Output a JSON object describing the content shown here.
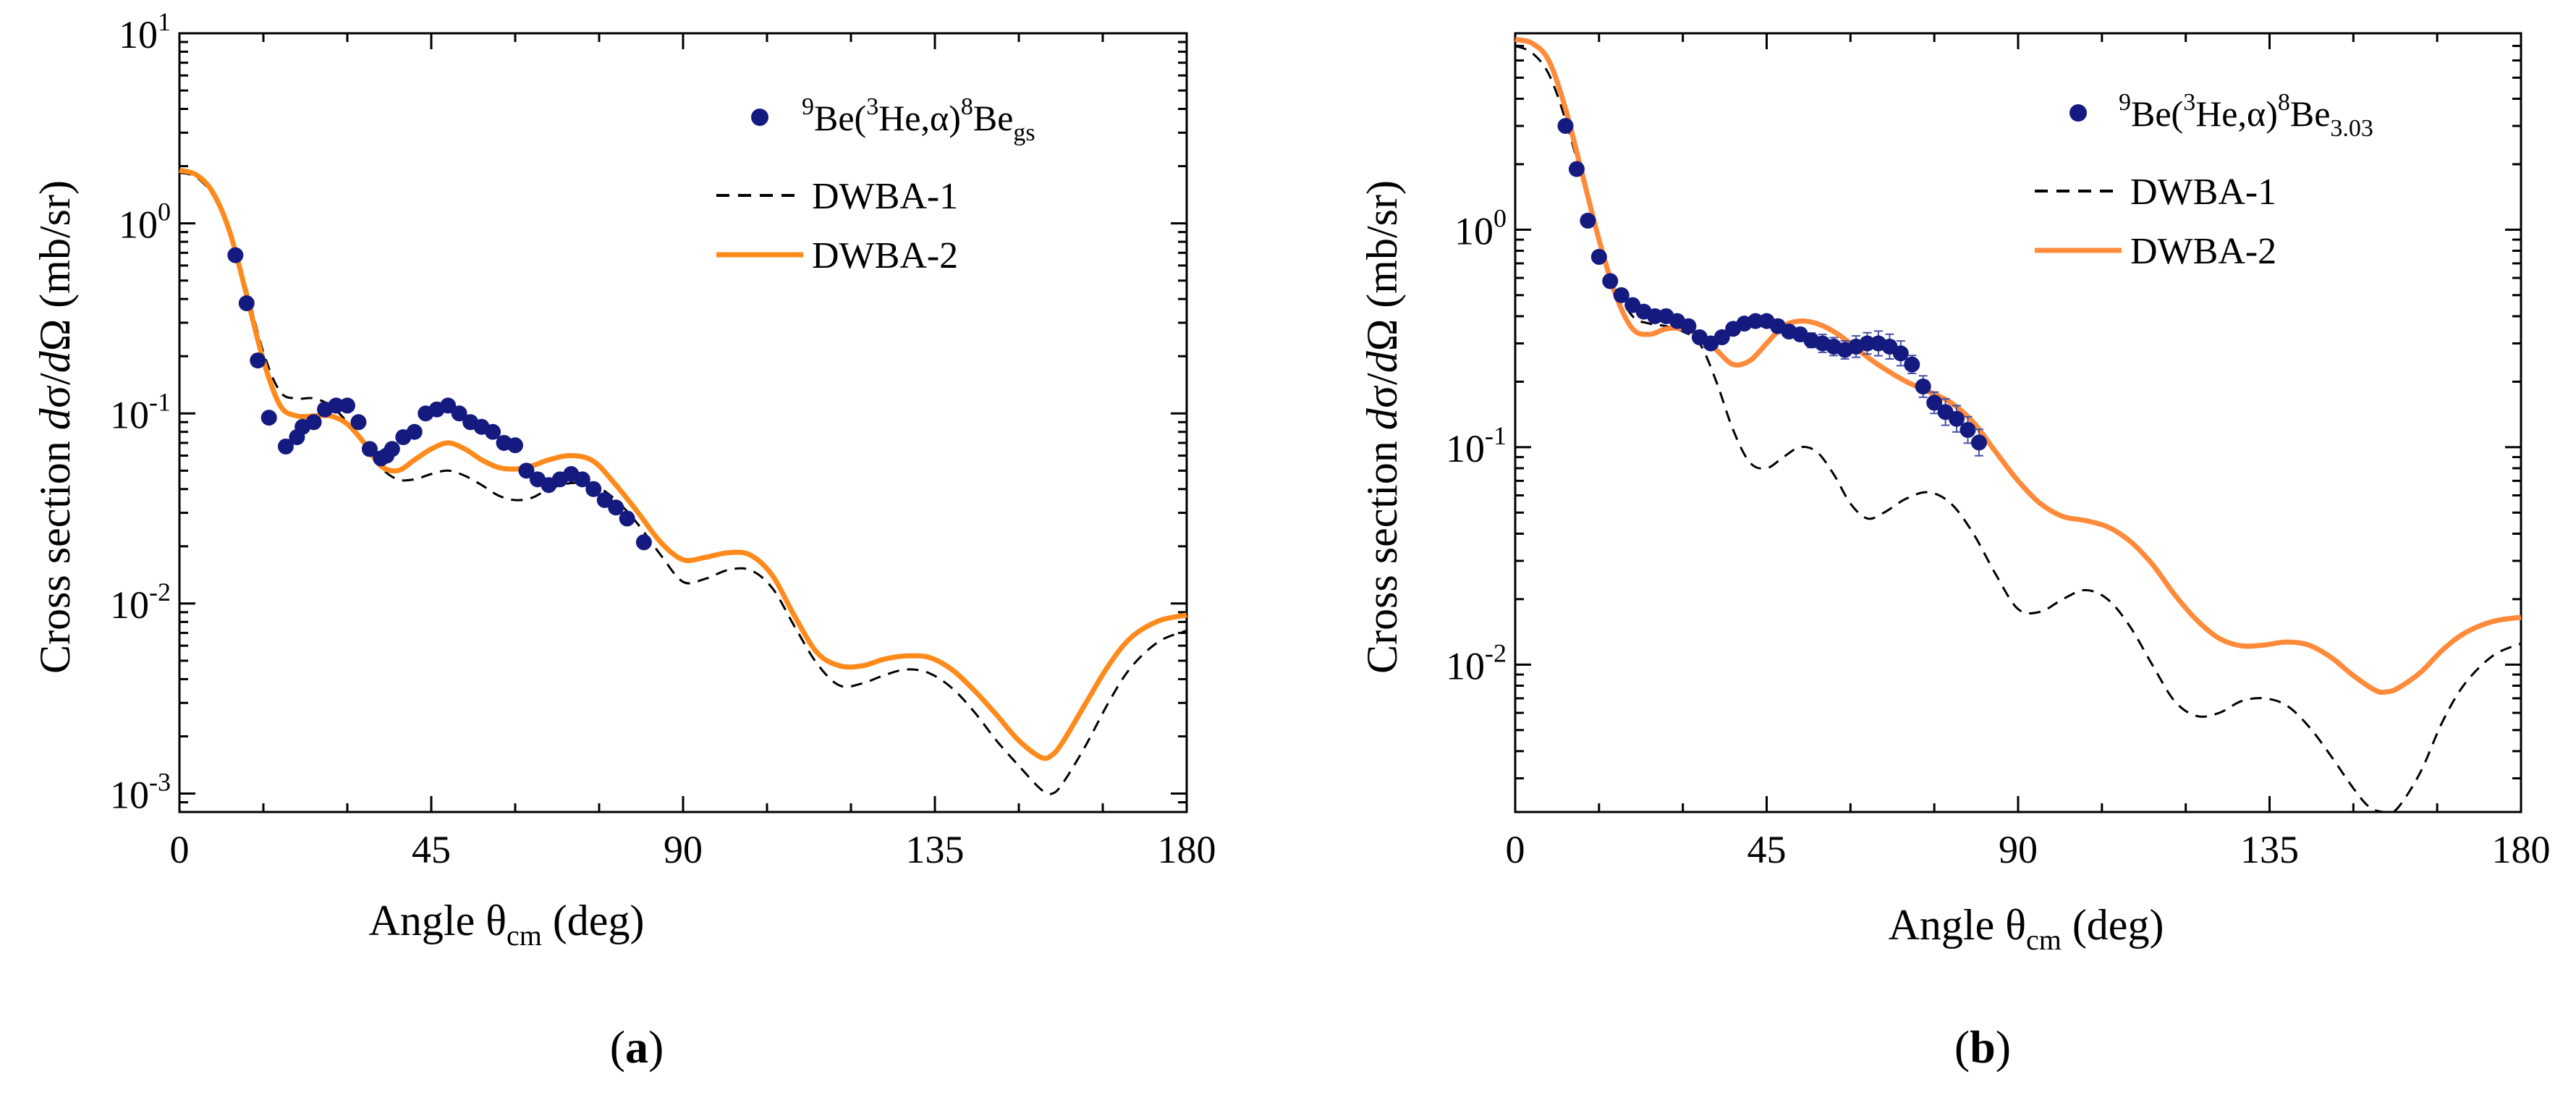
{
  "figure": {
    "panels": [
      {
        "caption": "a",
        "ylabel": {
          "prefix": "Cross section ",
          "d1": "d",
          "sigma": "σ/",
          "d2": "d",
          "omega": "Ω",
          "unit": " (mb/sr)"
        },
        "xlabel": {
          "prefix": "Angle θ",
          "sub": "cm",
          "suffix": " (deg)"
        },
        "legend": {
          "data": {
            "pre": "9",
            "base1": "Be(",
            "sup2": "3",
            "base2": "He,α)",
            "sup3": "8",
            "base3": "Be",
            "sub": "gs"
          },
          "dwba1": "DWBA-1",
          "dwba2": "DWBA-2"
        }
      },
      {
        "caption": "b",
        "ylabel": {
          "prefix": "Cross section ",
          "d1": "d",
          "sigma": "σ/",
          "d2": "d",
          "omega": "Ω",
          "unit": " (mb/sr)"
        },
        "xlabel": {
          "prefix": "Angle θ",
          "sub": "cm",
          "suffix": " (deg)"
        },
        "legend": {
          "data": {
            "pre": "9",
            "base1": "Be(",
            "sup2": "3",
            "base2": "He,α)",
            "sup3": "8",
            "base3": "Be",
            "sub": "3.03"
          },
          "dwba1": "DWBA-1",
          "dwba2": "DWBA-2"
        }
      }
    ]
  },
  "chart_data": [
    {
      "type": "scatter",
      "title": "(a)",
      "xlabel": "Angle θcm (deg)",
      "ylabel": "Cross section dσ/dΩ (mb/sr)",
      "xscale": "linear",
      "yscale": "log",
      "xlim": [
        0,
        180
      ],
      "ylim": [
        0.0008,
        10
      ],
      "xticks": [
        0,
        45,
        90,
        135,
        180
      ],
      "xtick_labels": [
        "0",
        "45",
        "90",
        "135",
        "180"
      ],
      "yticks": [
        0.001,
        0.01,
        0.1,
        1,
        10
      ],
      "ytick_labels": [
        {
          "base": "10",
          "exp": "-3"
        },
        {
          "base": "10",
          "exp": "-2"
        },
        {
          "base": "10",
          "exp": "-1"
        },
        {
          "base": "10",
          "exp": "0"
        },
        {
          "base": "10",
          "exp": "1"
        }
      ],
      "legend_position": "top-right",
      "data_color": "#141a80",
      "series": [
        {
          "name": "9Be(3He,α)8Be gs",
          "style": "markers",
          "x": [
            10,
            12,
            14,
            16,
            19,
            21,
            22,
            24,
            26,
            28,
            30,
            32,
            34,
            36,
            37,
            38,
            40,
            42,
            44,
            46,
            48,
            50,
            52,
            54,
            56,
            58,
            60,
            62,
            64,
            66,
            68,
            70,
            72,
            74,
            76,
            78,
            80,
            83
          ],
          "y": [
            0.68,
            0.38,
            0.19,
            0.095,
            0.067,
            0.075,
            0.085,
            0.09,
            0.105,
            0.11,
            0.11,
            0.09,
            0.065,
            0.058,
            0.06,
            0.065,
            0.075,
            0.08,
            0.1,
            0.105,
            0.11,
            0.1,
            0.09,
            0.085,
            0.08,
            0.07,
            0.068,
            0.05,
            0.045,
            0.042,
            0.045,
            0.048,
            0.045,
            0.04,
            0.035,
            0.032,
            0.028,
            0.021
          ]
        },
        {
          "name": "DWBA-1",
          "style": "dashed",
          "color": "#000000",
          "x": [
            0,
            3,
            6,
            9,
            12,
            15,
            18,
            21,
            24,
            27,
            30,
            33,
            36,
            39,
            42,
            45,
            48,
            51,
            54,
            57,
            60,
            63,
            66,
            70,
            74,
            78,
            82,
            86,
            90,
            94,
            98,
            102,
            106,
            110,
            114,
            118,
            122,
            126,
            130,
            134,
            138,
            142,
            146,
            150,
            154,
            156,
            158,
            162,
            166,
            170,
            175,
            180
          ],
          "y": [
            1.85,
            1.75,
            1.4,
            0.9,
            0.45,
            0.21,
            0.13,
            0.12,
            0.12,
            0.11,
            0.09,
            0.07,
            0.052,
            0.045,
            0.045,
            0.048,
            0.05,
            0.047,
            0.042,
            0.037,
            0.035,
            0.036,
            0.04,
            0.043,
            0.042,
            0.035,
            0.026,
            0.018,
            0.013,
            0.0135,
            0.015,
            0.015,
            0.012,
            0.0075,
            0.0048,
            0.0037,
            0.0038,
            0.0042,
            0.0045,
            0.0043,
            0.0036,
            0.0027,
            0.0019,
            0.0014,
            0.00105,
            0.001,
            0.00115,
            0.0018,
            0.003,
            0.0046,
            0.0063,
            0.0072
          ]
        },
        {
          "name": "DWBA-2",
          "style": "solid",
          "color": "#ff8a1c",
          "x": [
            0,
            3,
            6,
            9,
            12,
            15,
            18,
            21,
            24,
            27,
            30,
            33,
            36,
            39,
            42,
            45,
            48,
            51,
            54,
            57,
            60,
            63,
            66,
            70,
            74,
            78,
            82,
            86,
            90,
            94,
            98,
            102,
            106,
            110,
            114,
            118,
            122,
            126,
            130,
            134,
            138,
            142,
            146,
            150,
            154,
            156,
            158,
            162,
            166,
            170,
            175,
            180
          ],
          "y": [
            1.9,
            1.8,
            1.45,
            0.9,
            0.42,
            0.19,
            0.11,
            0.097,
            0.097,
            0.097,
            0.088,
            0.07,
            0.053,
            0.05,
            0.057,
            0.065,
            0.07,
            0.065,
            0.057,
            0.052,
            0.051,
            0.053,
            0.057,
            0.06,
            0.056,
            0.042,
            0.03,
            0.021,
            0.017,
            0.0175,
            0.0185,
            0.018,
            0.014,
            0.0085,
            0.0055,
            0.0047,
            0.0047,
            0.0051,
            0.0053,
            0.0052,
            0.0045,
            0.0035,
            0.0026,
            0.0019,
            0.00155,
            0.0016,
            0.0019,
            0.003,
            0.0047,
            0.0066,
            0.0081,
            0.0087
          ]
        }
      ]
    },
    {
      "type": "scatter",
      "title": "(b)",
      "xlabel": "Angle θcm (deg)",
      "ylabel": "Cross section dσ/dΩ (mb/sr)",
      "xscale": "linear",
      "yscale": "log",
      "xlim": [
        0,
        180
      ],
      "ylim": [
        0.0021,
        8
      ],
      "xticks": [
        0,
        45,
        90,
        135,
        180
      ],
      "xtick_labels": [
        "0",
        "45",
        "90",
        "135",
        "180"
      ],
      "yticks": [
        0.01,
        0.1,
        1
      ],
      "ytick_labels": [
        {
          "base": "10",
          "exp": "-2"
        },
        {
          "base": "10",
          "exp": "-1"
        },
        {
          "base": "10",
          "exp": "0"
        }
      ],
      "legend_position": "top-right",
      "data_color": "#141a80",
      "series": [
        {
          "name": "9Be(3He,α)8Be 3.03",
          "style": "markers",
          "x": [
            9,
            11,
            13,
            15,
            17,
            19,
            21,
            23,
            25,
            27,
            29,
            31,
            33,
            35,
            37,
            39,
            41,
            43,
            45,
            47,
            49,
            51,
            53,
            55,
            57,
            59,
            61,
            63,
            65,
            67,
            69,
            71,
            73,
            75,
            77,
            79,
            81,
            83
          ],
          "y": [
            3.0,
            1.9,
            1.1,
            0.75,
            0.58,
            0.5,
            0.45,
            0.42,
            0.4,
            0.4,
            0.38,
            0.36,
            0.32,
            0.3,
            0.32,
            0.35,
            0.37,
            0.38,
            0.38,
            0.36,
            0.34,
            0.33,
            0.31,
            0.3,
            0.29,
            0.28,
            0.29,
            0.3,
            0.3,
            0.29,
            0.27,
            0.24,
            0.19,
            0.16,
            0.145,
            0.135,
            0.12,
            0.105
          ],
          "err_factor": [
            1.05,
            1.05,
            1.05,
            1.05,
            1.05,
            1.05,
            1.05,
            1.05,
            1.05,
            1.05,
            1.05,
            1.06,
            1.06,
            1.06,
            1.06,
            1.06,
            1.06,
            1.06,
            1.06,
            1.06,
            1.06,
            1.07,
            1.08,
            1.1,
            1.1,
            1.1,
            1.12,
            1.12,
            1.14,
            1.14,
            1.14,
            1.1,
            1.12,
            1.12,
            1.15,
            1.15,
            1.15,
            1.15
          ]
        },
        {
          "name": "DWBA-1",
          "style": "dashed",
          "color": "#000000",
          "x": [
            0,
            3,
            6,
            9,
            12,
            15,
            18,
            21,
            24,
            27,
            30,
            33,
            36,
            39,
            42,
            45,
            48,
            51,
            54,
            57,
            60,
            63,
            66,
            70,
            74,
            78,
            82,
            86,
            90,
            94,
            98,
            102,
            106,
            110,
            114,
            118,
            122,
            126,
            130,
            134,
            138,
            142,
            146,
            150,
            153,
            156,
            158,
            162,
            166,
            170,
            175,
            180
          ],
          "y": [
            7.0,
            6.5,
            5.2,
            3.2,
            1.7,
            0.9,
            0.55,
            0.4,
            0.37,
            0.36,
            0.34,
            0.3,
            0.2,
            0.12,
            0.085,
            0.08,
            0.09,
            0.1,
            0.095,
            0.075,
            0.055,
            0.047,
            0.05,
            0.058,
            0.062,
            0.055,
            0.04,
            0.026,
            0.018,
            0.0175,
            0.02,
            0.022,
            0.02,
            0.015,
            0.01,
            0.0068,
            0.0058,
            0.006,
            0.0068,
            0.007,
            0.0065,
            0.0052,
            0.0038,
            0.0027,
            0.0022,
            0.0021,
            0.0022,
            0.0032,
            0.0055,
            0.0082,
            0.011,
            0.0125
          ]
        },
        {
          "name": "DWBA-2",
          "style": "solid",
          "color": "#ff8a3a",
          "x": [
            0,
            3,
            6,
            9,
            12,
            15,
            18,
            21,
            24,
            27,
            30,
            33,
            36,
            39,
            42,
            45,
            48,
            51,
            54,
            57,
            60,
            63,
            66,
            70,
            74,
            78,
            82,
            86,
            90,
            94,
            98,
            102,
            106,
            110,
            114,
            118,
            122,
            126,
            130,
            134,
            138,
            142,
            146,
            150,
            154,
            156,
            158,
            162,
            166,
            170,
            175,
            180
          ],
          "y": [
            7.5,
            7.2,
            6.0,
            3.6,
            1.8,
            0.9,
            0.5,
            0.35,
            0.33,
            0.35,
            0.35,
            0.33,
            0.28,
            0.24,
            0.25,
            0.3,
            0.36,
            0.38,
            0.37,
            0.34,
            0.3,
            0.26,
            0.23,
            0.2,
            0.18,
            0.16,
            0.13,
            0.095,
            0.07,
            0.055,
            0.048,
            0.046,
            0.043,
            0.037,
            0.029,
            0.021,
            0.016,
            0.0132,
            0.0122,
            0.0123,
            0.0127,
            0.0123,
            0.0108,
            0.0089,
            0.0076,
            0.0075,
            0.0078,
            0.0092,
            0.0117,
            0.014,
            0.0158,
            0.0165
          ]
        }
      ]
    }
  ]
}
